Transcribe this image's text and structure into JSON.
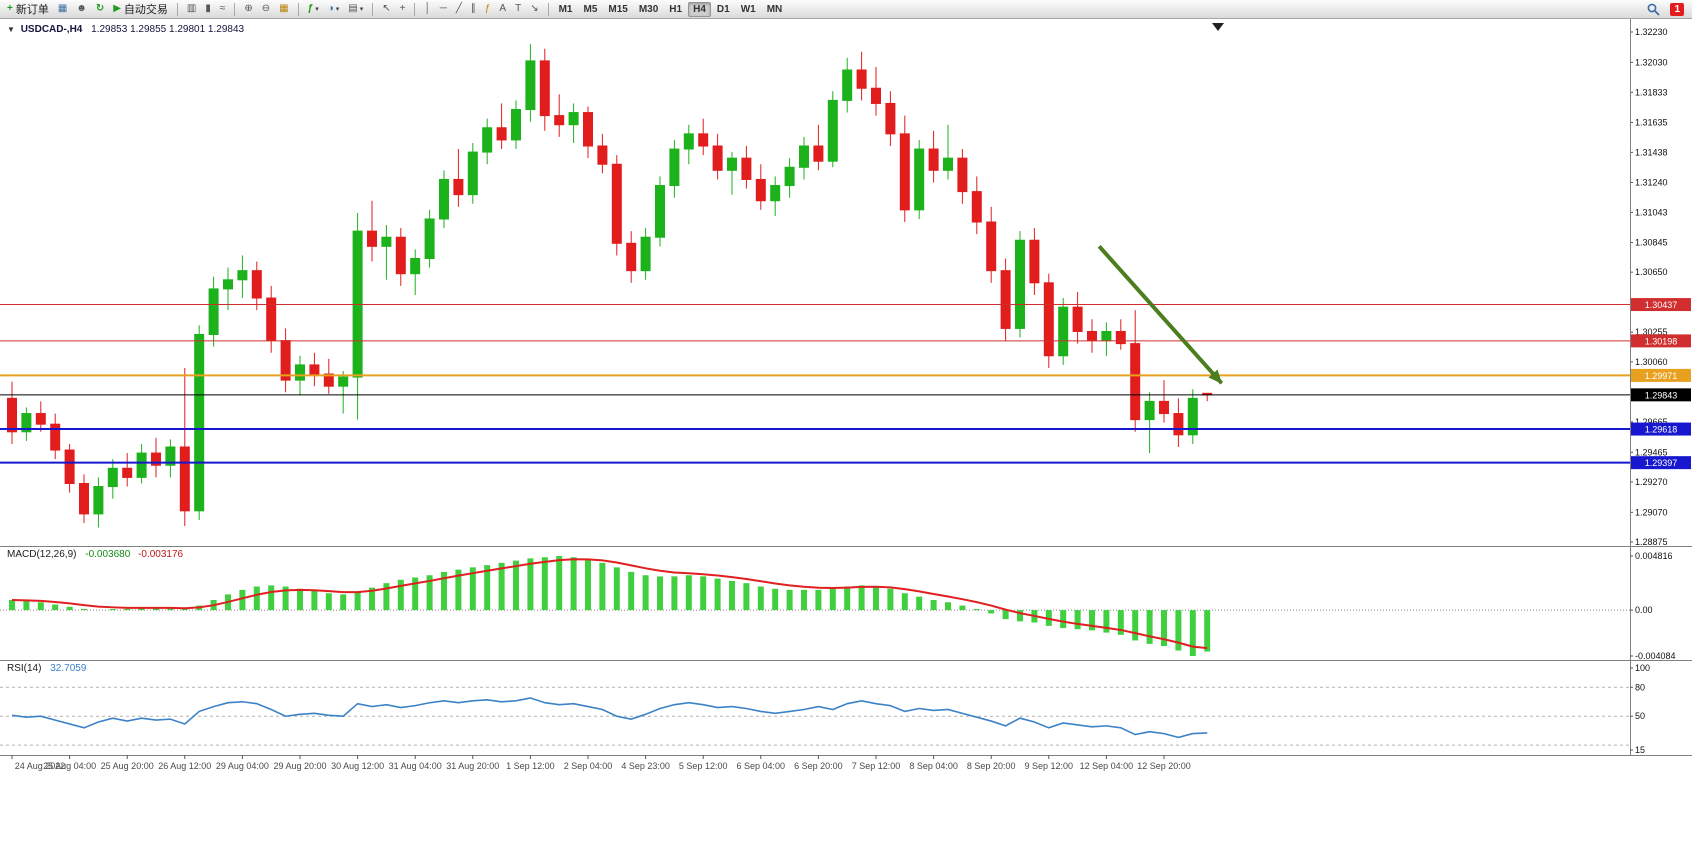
{
  "toolbar": {
    "new_order_label": "新订单",
    "auto_trading_label": "自动交易",
    "badge_count": "1",
    "active_timeframe": "H4",
    "timeframes": [
      "M1",
      "M5",
      "M15",
      "M30",
      "H1",
      "H4",
      "D1",
      "W1",
      "MN"
    ],
    "icons": {
      "new_order": "+",
      "charts": "▦",
      "profile": "☻",
      "refresh": "↻",
      "play": "▶",
      "bar_chart": "▥",
      "candlestick": "▮",
      "line_chart": "≈",
      "zoom_in": "⊕",
      "zoom_out": "⊖",
      "tile": "▦",
      "indicators": "ƒ",
      "periods": "◑",
      "templates": "▤",
      "dropdown": "▾",
      "cursor": "↖",
      "crosshair": "+",
      "vline": "│",
      "hline": "─",
      "trendline": "╱",
      "channel": "∥",
      "fibonacci": "ƒ",
      "text": "A",
      "label": "T",
      "arrows": "↘"
    }
  },
  "chart_data": {
    "type": "candlestick",
    "symbol": "USDCAD-",
    "timeframe": "H4",
    "quote": {
      "collapse_glyph": "▼",
      "symbol": "USDCAD-,H4",
      "ohlc": "1.29853 1.29855 1.29801 1.29843",
      "open": "1.29853",
      "high": "1.29855",
      "low": "1.29801",
      "close": "1.29843"
    },
    "colors": {
      "bull": "#1cb21c",
      "bear": "#e11d1d",
      "macd_hist": "#3fcf3f",
      "macd_signal": "#e02020",
      "rsi": "#3c82c8",
      "axis_text": "#111111",
      "time_text": "#4a4a4a",
      "separator": "#808080"
    },
    "price_axis": {
      "max": 1.3223,
      "min": 1.28875,
      "ticks": [
        "1.32230",
        "1.32030",
        "1.31833",
        "1.31635",
        "1.31438",
        "1.31240",
        "1.31043",
        "1.30845",
        "1.30650",
        "1.30450",
        "1.30255",
        "1.30060",
        "1.29860",
        "1.29665",
        "1.29465",
        "1.29270",
        "1.29070",
        "1.28875"
      ]
    },
    "levels": [
      {
        "price": 1.30437,
        "label": "1.30437",
        "color": "#d12f2f",
        "width": 1
      },
      {
        "price": 1.30198,
        "label": "1.30198",
        "color": "#d12f2f",
        "width": 1
      },
      {
        "price": 1.29971,
        "label": "1.29971",
        "color": "#e8a11f",
        "width": 2
      },
      {
        "price": 1.29843,
        "label": "1.29843",
        "color": "#000000",
        "width": 1,
        "current": true
      },
      {
        "price": 1.29618,
        "label": "1.29618",
        "color": "#1717cf",
        "width": 2
      },
      {
        "price": 1.29397,
        "label": "1.29397",
        "color": "#1717cf",
        "width": 2
      }
    ],
    "arrow": {
      "from_bar": 75.5,
      "from_price": 1.3082,
      "to_bar": 84,
      "to_price": 1.2992,
      "color": "#4c7d1f",
      "width": 4
    },
    "time_labels": [
      "24 Aug 2022",
      "25 Aug 04:00",
      "25 Aug 20:00",
      "26 Aug 12:00",
      "29 Aug 04:00",
      "29 Aug 20:00",
      "30 Aug 12:00",
      "31 Aug 04:00",
      "31 Aug 20:00",
      "1 Sep 12:00",
      "2 Sep 04:00",
      "4 Sep 23:00",
      "5 Sep 12:00",
      "6 Sep 04:00",
      "6 Sep 20:00",
      "7 Sep 12:00",
      "8 Sep 04:00",
      "8 Sep 20:00",
      "9 Sep 12:00",
      "12 Sep 04:00",
      "12 Sep 20:00"
    ],
    "candles": [
      [
        1.2982,
        1.2993,
        1.2952,
        1.296
      ],
      [
        1.296,
        1.2976,
        1.2954,
        1.2972
      ],
      [
        1.2972,
        1.298,
        1.296,
        1.2965
      ],
      [
        1.2965,
        1.2972,
        1.2942,
        1.2948
      ],
      [
        1.2948,
        1.2952,
        1.292,
        1.2926
      ],
      [
        1.2926,
        1.2932,
        1.29,
        1.2906
      ],
      [
        1.2906,
        1.293,
        1.2897,
        1.2924
      ],
      [
        1.2924,
        1.2942,
        1.2916,
        1.2936
      ],
      [
        1.2936,
        1.2946,
        1.2924,
        1.293
      ],
      [
        1.293,
        1.2952,
        1.2926,
        1.2946
      ],
      [
        1.2946,
        1.2956,
        1.293,
        1.2938
      ],
      [
        1.2938,
        1.2955,
        1.293,
        1.295
      ],
      [
        1.295,
        1.3002,
        1.2898,
        1.2908
      ],
      [
        1.2908,
        1.303,
        1.2902,
        1.3024
      ],
      [
        1.3024,
        1.3062,
        1.3016,
        1.3054
      ],
      [
        1.3054,
        1.3068,
        1.304,
        1.306
      ],
      [
        1.306,
        1.3076,
        1.3048,
        1.3066
      ],
      [
        1.3066,
        1.3072,
        1.304,
        1.3048
      ],
      [
        1.3048,
        1.3056,
        1.3012,
        1.302
      ],
      [
        1.302,
        1.3028,
        1.2986,
        1.2994
      ],
      [
        1.2994,
        1.301,
        1.2984,
        1.3004
      ],
      [
        1.3004,
        1.3012,
        1.299,
        1.2998
      ],
      [
        1.2998,
        1.3008,
        1.2985,
        1.299
      ],
      [
        1.299,
        1.3,
        1.2972,
        1.2996
      ],
      [
        1.2996,
        1.3104,
        1.2968,
        1.3092
      ],
      [
        1.3092,
        1.3112,
        1.3072,
        1.3082
      ],
      [
        1.3082,
        1.3096,
        1.306,
        1.3088
      ],
      [
        1.3088,
        1.3094,
        1.3056,
        1.3064
      ],
      [
        1.3064,
        1.308,
        1.305,
        1.3074
      ],
      [
        1.3074,
        1.3106,
        1.3068,
        1.31
      ],
      [
        1.31,
        1.3132,
        1.3094,
        1.3126
      ],
      [
        1.3126,
        1.3146,
        1.3108,
        1.3116
      ],
      [
        1.3116,
        1.315,
        1.311,
        1.3144
      ],
      [
        1.3144,
        1.3166,
        1.3136,
        1.316
      ],
      [
        1.316,
        1.3176,
        1.3146,
        1.3152
      ],
      [
        1.3152,
        1.3178,
        1.3146,
        1.3172
      ],
      [
        1.3172,
        1.3215,
        1.3164,
        1.3204
      ],
      [
        1.3204,
        1.3212,
        1.3158,
        1.3168
      ],
      [
        1.3168,
        1.3182,
        1.3154,
        1.3162
      ],
      [
        1.3162,
        1.3176,
        1.315,
        1.317
      ],
      [
        1.317,
        1.3174,
        1.314,
        1.3148
      ],
      [
        1.3148,
        1.3156,
        1.313,
        1.3136
      ],
      [
        1.3136,
        1.3142,
        1.3076,
        1.3084
      ],
      [
        1.3084,
        1.3092,
        1.3058,
        1.3066
      ],
      [
        1.3066,
        1.3094,
        1.306,
        1.3088
      ],
      [
        1.3088,
        1.3128,
        1.3082,
        1.3122
      ],
      [
        1.3122,
        1.3152,
        1.3114,
        1.3146
      ],
      [
        1.3146,
        1.3162,
        1.3136,
        1.3156
      ],
      [
        1.3156,
        1.3166,
        1.3142,
        1.3148
      ],
      [
        1.3148,
        1.3156,
        1.3126,
        1.3132
      ],
      [
        1.3132,
        1.3144,
        1.3116,
        1.314
      ],
      [
        1.314,
        1.3148,
        1.312,
        1.3126
      ],
      [
        1.3126,
        1.3136,
        1.3106,
        1.3112
      ],
      [
        1.3112,
        1.3128,
        1.3102,
        1.3122
      ],
      [
        1.3122,
        1.314,
        1.3114,
        1.3134
      ],
      [
        1.3134,
        1.3154,
        1.3126,
        1.3148
      ],
      [
        1.3148,
        1.3162,
        1.3132,
        1.3138
      ],
      [
        1.3138,
        1.3184,
        1.3134,
        1.3178
      ],
      [
        1.3178,
        1.3206,
        1.317,
        1.3198
      ],
      [
        1.3198,
        1.321,
        1.3178,
        1.3186
      ],
      [
        1.3186,
        1.32,
        1.3168,
        1.3176
      ],
      [
        1.3176,
        1.3184,
        1.3148,
        1.3156
      ],
      [
        1.3156,
        1.3168,
        1.3098,
        1.3106
      ],
      [
        1.3106,
        1.3152,
        1.31,
        1.3146
      ],
      [
        1.3146,
        1.3158,
        1.3124,
        1.3132
      ],
      [
        1.3132,
        1.3162,
        1.3126,
        1.314
      ],
      [
        1.314,
        1.3146,
        1.311,
        1.3118
      ],
      [
        1.3118,
        1.3128,
        1.309,
        1.3098
      ],
      [
        1.3098,
        1.3108,
        1.3058,
        1.3066
      ],
      [
        1.3066,
        1.3074,
        1.302,
        1.3028
      ],
      [
        1.3028,
        1.3092,
        1.3022,
        1.3086
      ],
      [
        1.3086,
        1.3094,
        1.305,
        1.3058
      ],
      [
        1.3058,
        1.3064,
        1.3002,
        1.301
      ],
      [
        1.301,
        1.3048,
        1.3004,
        1.3042
      ],
      [
        1.3042,
        1.3052,
        1.3018,
        1.3026
      ],
      [
        1.3026,
        1.3034,
        1.3012,
        1.302
      ],
      [
        1.302,
        1.3032,
        1.301,
        1.3026
      ],
      [
        1.3026,
        1.3034,
        1.3014,
        1.3018
      ],
      [
        1.3018,
        1.304,
        1.296,
        1.2968
      ],
      [
        1.2968,
        1.2986,
        1.2946,
        1.298
      ],
      [
        1.298,
        1.2994,
        1.2966,
        1.2972
      ],
      [
        1.2972,
        1.2982,
        1.295,
        1.2958
      ],
      [
        1.2958,
        1.2988,
        1.2952,
        1.2982
      ],
      [
        1.29853,
        1.29855,
        1.29801,
        1.29843
      ]
    ],
    "macd": {
      "title": "MACD(12,26,9)",
      "main_value": "-0.003680",
      "signal_value": "-0.003176",
      "axis_labels": [
        {
          "label": "0.004816",
          "value": 0.004816
        },
        {
          "label": "0.00",
          "value": 0
        },
        {
          "label": "-0.004084",
          "value": -0.004084
        }
      ],
      "histogram": [
        0.0009,
        0.0008,
        0.0007,
        0.0005,
        0.0003,
        0.0001,
        0.0,
        0.0001,
        0.0001,
        0.0002,
        0.0002,
        0.0002,
        0.0001,
        0.0004,
        0.0009,
        0.0014,
        0.0018,
        0.0021,
        0.0022,
        0.0021,
        0.0019,
        0.0017,
        0.0015,
        0.0014,
        0.0016,
        0.002,
        0.0024,
        0.0027,
        0.0029,
        0.0031,
        0.0034,
        0.0036,
        0.0038,
        0.004,
        0.0042,
        0.0044,
        0.0046,
        0.0047,
        0.004816,
        0.0047,
        0.0045,
        0.0042,
        0.0038,
        0.0034,
        0.0031,
        0.003,
        0.003,
        0.0031,
        0.003,
        0.0028,
        0.0026,
        0.0024,
        0.0021,
        0.0019,
        0.0018,
        0.0018,
        0.0018,
        0.0019,
        0.0021,
        0.0022,
        0.0021,
        0.0019,
        0.0015,
        0.0012,
        0.0009,
        0.0007,
        0.0004,
        0.0001,
        -0.0003,
        -0.0008,
        -0.001,
        -0.0011,
        -0.0014,
        -0.0016,
        -0.0017,
        -0.0018,
        -0.002,
        -0.0022,
        -0.0027,
        -0.003,
        -0.0032,
        -0.0036,
        -0.004084,
        -0.00368
      ]
    },
    "rsi": {
      "title": "RSI(14)",
      "value": "32.7059",
      "scale_max": 100,
      "scale_min": 15,
      "levels": [
        80,
        50,
        20
      ],
      "axis_labels": [
        {
          "label": "100",
          "value": 100
        },
        {
          "label": "80",
          "value": 80
        },
        {
          "label": "50",
          "value": 50
        },
        {
          "label": "15",
          "value": 15
        }
      ],
      "values": [
        51,
        49,
        50,
        46,
        42,
        38,
        44,
        48,
        45,
        48,
        46,
        47,
        42,
        55,
        60,
        64,
        65,
        63,
        57,
        50,
        52,
        53,
        51,
        50,
        63,
        60,
        62,
        59,
        61,
        64,
        66,
        64,
        66,
        67,
        65,
        66,
        69,
        64,
        62,
        63,
        60,
        57,
        50,
        47,
        52,
        58,
        62,
        64,
        62,
        59,
        60,
        58,
        55,
        53,
        55,
        57,
        60,
        57,
        63,
        66,
        63,
        61,
        55,
        58,
        56,
        57,
        53,
        49,
        45,
        40,
        48,
        44,
        38,
        43,
        41,
        39,
        40,
        38,
        31,
        34,
        32,
        28,
        32,
        32.7
      ]
    }
  }
}
